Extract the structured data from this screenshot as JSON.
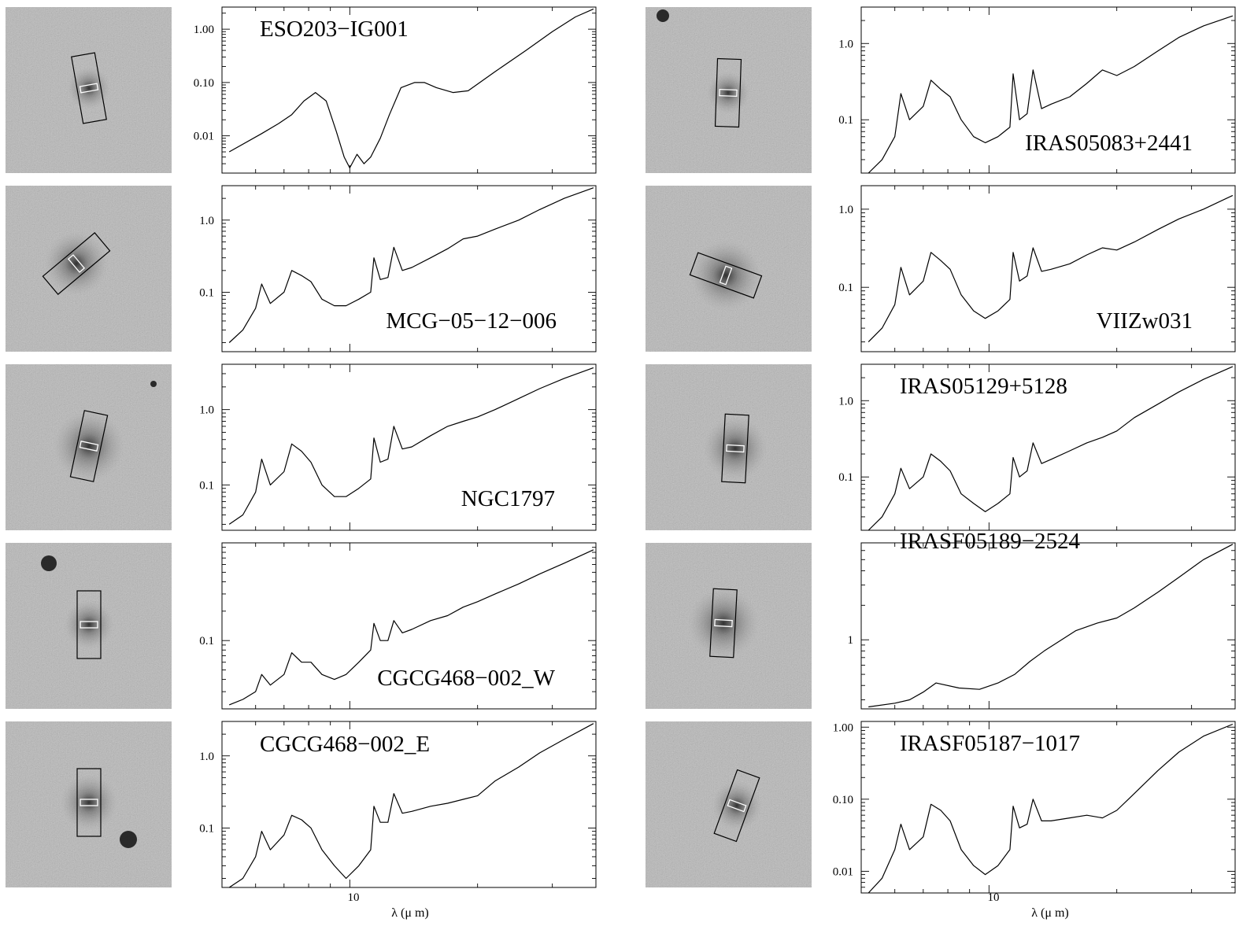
{
  "figure": {
    "xlabel": "λ (μ m)",
    "x_tick_label": "10"
  },
  "chart_data": [
    {
      "type": "line",
      "object": "ESO203−IG001",
      "yscale": "log",
      "yticks": [
        "1.00",
        "0.10",
        "0.01"
      ],
      "ylim": [
        0.002,
        2.6
      ],
      "xlim": [
        5,
        38
      ],
      "series": [
        {
          "x": [
            5.2,
            6.2,
            6.8,
            7.3,
            7.8,
            8.3,
            8.8,
            9.3,
            9.7,
            10.0,
            10.4,
            10.8,
            11.2,
            11.8,
            12.4,
            13.2,
            14.2,
            15.0,
            16.0,
            17.5,
            19.0,
            22.0,
            26.0,
            30.0,
            34.0,
            37.5
          ],
          "y": [
            0.005,
            0.011,
            0.017,
            0.025,
            0.045,
            0.065,
            0.045,
            0.012,
            0.004,
            0.0025,
            0.0045,
            0.003,
            0.004,
            0.009,
            0.025,
            0.08,
            0.1,
            0.1,
            0.08,
            0.065,
            0.07,
            0.16,
            0.4,
            0.9,
            1.7,
            2.4
          ]
        }
      ]
    },
    {
      "type": "line",
      "object": "IRAS05083+2441",
      "yscale": "log",
      "yticks": [
        "1.0",
        "0.1"
      ],
      "ylim": [
        0.02,
        3
      ],
      "xlim": [
        5,
        38
      ],
      "series": [
        {
          "x": [
            5.2,
            5.6,
            6.0,
            6.2,
            6.5,
            7.0,
            7.3,
            7.7,
            8.1,
            8.6,
            9.2,
            9.8,
            10.5,
            11.2,
            11.4,
            11.8,
            12.3,
            12.7,
            13.3,
            14.0,
            15.5,
            17.0,
            18.5,
            20.0,
            22.0,
            25.0,
            28.0,
            32.0,
            37.5
          ],
          "y": [
            0.02,
            0.03,
            0.06,
            0.22,
            0.1,
            0.15,
            0.33,
            0.25,
            0.2,
            0.1,
            0.06,
            0.05,
            0.06,
            0.08,
            0.4,
            0.1,
            0.12,
            0.45,
            0.14,
            0.16,
            0.2,
            0.3,
            0.45,
            0.38,
            0.5,
            0.8,
            1.2,
            1.7,
            2.3
          ]
        }
      ]
    },
    {
      "type": "line",
      "object": "MCG−05−12−006",
      "yscale": "log",
      "yticks": [
        "1.0",
        "0.1"
      ],
      "ylim": [
        0.015,
        3
      ],
      "xlim": [
        5,
        38
      ],
      "series": [
        {
          "x": [
            5.2,
            5.6,
            6.0,
            6.2,
            6.5,
            7.0,
            7.3,
            7.7,
            8.1,
            8.6,
            9.2,
            9.8,
            10.5,
            11.2,
            11.4,
            11.8,
            12.3,
            12.7,
            13.3,
            14.0,
            15.5,
            17.0,
            18.5,
            20.0,
            22.0,
            25.0,
            28.0,
            32.0,
            37.5
          ],
          "y": [
            0.02,
            0.03,
            0.06,
            0.13,
            0.07,
            0.1,
            0.2,
            0.17,
            0.14,
            0.08,
            0.065,
            0.065,
            0.08,
            0.1,
            0.3,
            0.15,
            0.16,
            0.42,
            0.2,
            0.22,
            0.3,
            0.4,
            0.55,
            0.6,
            0.75,
            1.0,
            1.4,
            2.0,
            2.8
          ]
        }
      ]
    },
    {
      "type": "line",
      "object": "VIIZw031",
      "yscale": "log",
      "yticks": [
        "1.0",
        "0.1"
      ],
      "ylim": [
        0.015,
        2
      ],
      "xlim": [
        5,
        38
      ],
      "series": [
        {
          "x": [
            5.2,
            5.6,
            6.0,
            6.2,
            6.5,
            7.0,
            7.3,
            7.7,
            8.1,
            8.6,
            9.2,
            9.8,
            10.5,
            11.2,
            11.4,
            11.8,
            12.3,
            12.7,
            13.3,
            14.0,
            15.5,
            17.0,
            18.5,
            20.0,
            22.0,
            25.0,
            28.0,
            32.0,
            37.5
          ],
          "y": [
            0.02,
            0.03,
            0.06,
            0.18,
            0.08,
            0.12,
            0.28,
            0.22,
            0.17,
            0.08,
            0.05,
            0.04,
            0.05,
            0.07,
            0.28,
            0.12,
            0.14,
            0.32,
            0.16,
            0.17,
            0.2,
            0.26,
            0.32,
            0.3,
            0.38,
            0.55,
            0.75,
            1.0,
            1.5
          ]
        }
      ]
    },
    {
      "type": "line",
      "object": "NGC1797",
      "yscale": "log",
      "yticks": [
        "1.0",
        "0.1"
      ],
      "ylim": [
        0.025,
        4
      ],
      "xlim": [
        5,
        38
      ],
      "series": [
        {
          "x": [
            5.2,
            5.6,
            6.0,
            6.2,
            6.5,
            7.0,
            7.3,
            7.7,
            8.1,
            8.6,
            9.2,
            9.8,
            10.5,
            11.2,
            11.4,
            11.8,
            12.3,
            12.7,
            13.3,
            14.0,
            15.5,
            17.0,
            18.5,
            20.0,
            22.0,
            25.0,
            28.0,
            32.0,
            37.5
          ],
          "y": [
            0.03,
            0.04,
            0.08,
            0.22,
            0.1,
            0.15,
            0.35,
            0.28,
            0.2,
            0.1,
            0.07,
            0.07,
            0.09,
            0.12,
            0.42,
            0.2,
            0.22,
            0.6,
            0.3,
            0.32,
            0.45,
            0.6,
            0.7,
            0.8,
            1.0,
            1.4,
            1.9,
            2.6,
            3.6
          ]
        }
      ]
    },
    {
      "type": "line",
      "object": "IRAS05129+5128",
      "yscale": "log",
      "yticks": [
        "1.0",
        "0.1"
      ],
      "ylim": [
        0.02,
        3
      ],
      "xlim": [
        5,
        38
      ],
      "series": [
        {
          "x": [
            5.2,
            5.6,
            6.0,
            6.2,
            6.5,
            7.0,
            7.3,
            7.7,
            8.1,
            8.6,
            9.2,
            9.8,
            10.5,
            11.2,
            11.4,
            11.8,
            12.3,
            12.7,
            13.3,
            14.0,
            15.5,
            17.0,
            18.5,
            20.0,
            22.0,
            25.0,
            28.0,
            32.0,
            37.5
          ],
          "y": [
            0.02,
            0.03,
            0.06,
            0.13,
            0.07,
            0.1,
            0.2,
            0.16,
            0.12,
            0.06,
            0.045,
            0.035,
            0.045,
            0.06,
            0.18,
            0.1,
            0.12,
            0.28,
            0.15,
            0.17,
            0.22,
            0.28,
            0.33,
            0.4,
            0.6,
            0.9,
            1.3,
            1.9,
            2.8
          ]
        }
      ]
    },
    {
      "type": "line",
      "object": "CGCG468−002_W",
      "yscale": "log",
      "yticks": [
        "0.1"
      ],
      "ylim": [
        0.02,
        1.0
      ],
      "xlim": [
        5,
        38
      ],
      "series": [
        {
          "x": [
            5.2,
            5.6,
            6.0,
            6.2,
            6.5,
            7.0,
            7.3,
            7.7,
            8.1,
            8.6,
            9.2,
            9.8,
            10.5,
            11.2,
            11.4,
            11.8,
            12.3,
            12.7,
            13.3,
            14.0,
            15.5,
            17.0,
            18.5,
            20.0,
            22.0,
            25.0,
            28.0,
            32.0,
            37.5
          ],
          "y": [
            0.022,
            0.025,
            0.03,
            0.045,
            0.035,
            0.045,
            0.075,
            0.06,
            0.06,
            0.045,
            0.04,
            0.045,
            0.06,
            0.08,
            0.15,
            0.1,
            0.1,
            0.16,
            0.12,
            0.13,
            0.16,
            0.18,
            0.22,
            0.25,
            0.3,
            0.38,
            0.48,
            0.62,
            0.85
          ]
        }
      ]
    },
    {
      "type": "line",
      "object": "IRASF05189−2524",
      "yscale": "log",
      "yticks": [
        "1"
      ],
      "ylim": [
        0.25,
        7
      ],
      "xlim": [
        5,
        38
      ],
      "series": [
        {
          "x": [
            5.2,
            6.0,
            6.5,
            7.0,
            7.5,
            8.5,
            9.5,
            10.5,
            11.5,
            12.5,
            13.5,
            14.5,
            16.0,
            18.0,
            20.0,
            22.0,
            25.0,
            28.0,
            32.0,
            37.5
          ],
          "y": [
            0.26,
            0.28,
            0.3,
            0.35,
            0.42,
            0.38,
            0.37,
            0.42,
            0.5,
            0.65,
            0.8,
            0.95,
            1.2,
            1.4,
            1.55,
            1.9,
            2.6,
            3.5,
            5.0,
            6.8
          ]
        }
      ]
    },
    {
      "type": "line",
      "object": "CGCG468−002_E",
      "yscale": "log",
      "yticks": [
        "1.0",
        "0.1"
      ],
      "ylim": [
        0.015,
        3
      ],
      "xlim": [
        5,
        38
      ],
      "series": [
        {
          "x": [
            5.2,
            5.6,
            6.0,
            6.2,
            6.5,
            7.0,
            7.3,
            7.7,
            8.1,
            8.6,
            9.2,
            9.8,
            10.5,
            11.2,
            11.4,
            11.8,
            12.3,
            12.7,
            13.3,
            14.0,
            15.5,
            17.0,
            18.5,
            20.0,
            22.0,
            25.0,
            28.0,
            32.0,
            37.5
          ],
          "y": [
            0.015,
            0.02,
            0.04,
            0.09,
            0.05,
            0.08,
            0.15,
            0.13,
            0.1,
            0.05,
            0.03,
            0.02,
            0.03,
            0.05,
            0.2,
            0.12,
            0.12,
            0.3,
            0.16,
            0.17,
            0.2,
            0.22,
            0.25,
            0.28,
            0.45,
            0.7,
            1.1,
            1.7,
            2.8
          ]
        }
      ]
    },
    {
      "type": "line",
      "object": "IRASF05187−1017",
      "yscale": "log",
      "yticks": [
        "1.00",
        "0.10",
        "0.01"
      ],
      "ylim": [
        0.005,
        1.2
      ],
      "xlim": [
        5,
        38
      ],
      "series": [
        {
          "x": [
            5.2,
            5.6,
            6.0,
            6.2,
            6.5,
            7.0,
            7.3,
            7.7,
            8.1,
            8.6,
            9.2,
            9.8,
            10.5,
            11.2,
            11.4,
            11.8,
            12.3,
            12.7,
            13.3,
            14.0,
            15.5,
            17.0,
            18.5,
            20.0,
            22.0,
            25.0,
            28.0,
            32.0,
            37.5
          ],
          "y": [
            0.005,
            0.008,
            0.02,
            0.045,
            0.02,
            0.03,
            0.085,
            0.07,
            0.05,
            0.02,
            0.012,
            0.009,
            0.012,
            0.02,
            0.08,
            0.04,
            0.045,
            0.1,
            0.05,
            0.05,
            0.055,
            0.06,
            0.055,
            0.07,
            0.12,
            0.25,
            0.45,
            0.75,
            1.1
          ]
        }
      ]
    }
  ]
}
